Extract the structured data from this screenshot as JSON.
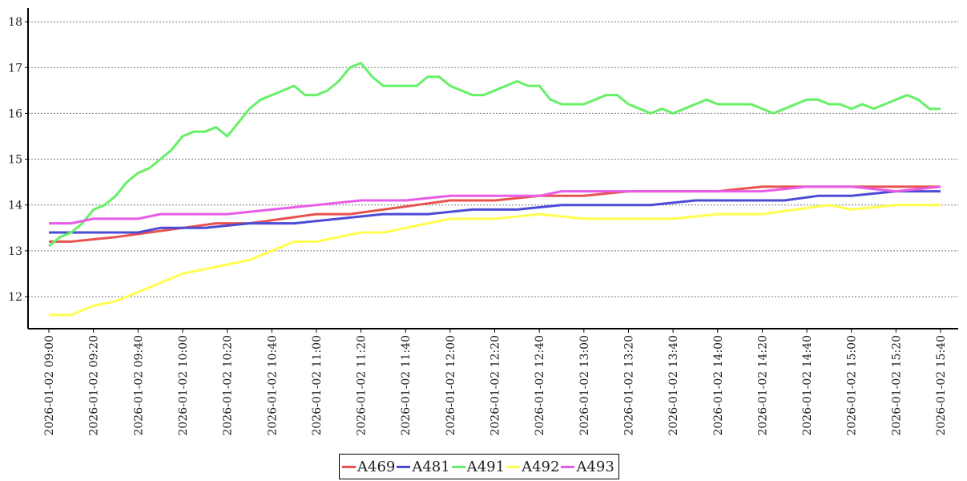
{
  "chart_data": {
    "type": "line",
    "title": "",
    "xlabel": "",
    "ylabel": "",
    "ylim": [
      11.3,
      18.3
    ],
    "yticks": [
      "12",
      "13",
      "14",
      "15",
      "16",
      "17",
      "18"
    ],
    "xticks": [
      "2026-01-02 09:00",
      "2026-01-02 09:20",
      "2026-01-02 09:40",
      "2026-01-02 10:00",
      "2026-01-02 10:20",
      "2026-01-02 10:40",
      "2026-01-02 11:00",
      "2026-01-02 11:20",
      "2026-01-02 11:40",
      "2026-01-02 12:00",
      "2026-01-02 12:20",
      "2026-01-02 12:40",
      "2026-01-02 13:00",
      "2026-01-02 13:20",
      "2026-01-02 13:40",
      "2026-01-02 14:00",
      "2026-01-02 14:20",
      "2026-01-02 14:40",
      "2026-01-02 15:00",
      "2026-01-02 15:20",
      "2026-01-02 15:40"
    ],
    "grid": "horizontal dotted",
    "legend_position": "bottom-center",
    "series": [
      {
        "name": "A469",
        "color": "#e8524f",
        "x": [
          "2026-01-02 09:00",
          "2026-01-02 09:10",
          "2026-01-02 09:30",
          "2026-01-02 09:45",
          "2026-01-02 10:00",
          "2026-01-02 10:15",
          "2026-01-02 10:30",
          "2026-01-02 10:45",
          "2026-01-02 11:00",
          "2026-01-02 11:15",
          "2026-01-02 11:30",
          "2026-01-02 11:45",
          "2026-01-02 12:00",
          "2026-01-02 12:20",
          "2026-01-02 12:40",
          "2026-01-02 13:00",
          "2026-01-02 13:20",
          "2026-01-02 13:40",
          "2026-01-02 14:00",
          "2026-01-02 14:20",
          "2026-01-02 14:40",
          "2026-01-02 15:00",
          "2026-01-02 15:20",
          "2026-01-02 15:40"
        ],
        "values": [
          13.2,
          13.2,
          13.3,
          13.4,
          13.5,
          13.6,
          13.6,
          13.7,
          13.8,
          13.8,
          13.9,
          14.0,
          14.1,
          14.1,
          14.2,
          14.2,
          14.3,
          14.3,
          14.3,
          14.4,
          14.4,
          14.4,
          14.4,
          14.4
        ]
      },
      {
        "name": "A481",
        "color": "#4b4bd6",
        "x": [
          "2026-01-02 09:00",
          "2026-01-02 09:20",
          "2026-01-02 09:40",
          "2026-01-02 09:50",
          "2026-01-02 10:10",
          "2026-01-02 10:30",
          "2026-01-02 10:50",
          "2026-01-02 11:10",
          "2026-01-02 11:30",
          "2026-01-02 11:50",
          "2026-01-02 12:10",
          "2026-01-02 12:30",
          "2026-01-02 12:50",
          "2026-01-02 13:10",
          "2026-01-02 13:30",
          "2026-01-02 13:50",
          "2026-01-02 14:10",
          "2026-01-02 14:30",
          "2026-01-02 14:45",
          "2026-01-02 15:00",
          "2026-01-02 15:20",
          "2026-01-02 15:40"
        ],
        "values": [
          13.4,
          13.4,
          13.4,
          13.5,
          13.5,
          13.6,
          13.6,
          13.7,
          13.8,
          13.8,
          13.9,
          13.9,
          14.0,
          14.0,
          14.0,
          14.1,
          14.1,
          14.1,
          14.2,
          14.2,
          14.3,
          14.3
        ]
      },
      {
        "name": "A491",
        "color": "#66f066",
        "x": [
          "2026-01-02 09:00",
          "2026-01-02 09:05",
          "2026-01-02 09:10",
          "2026-01-02 09:15",
          "2026-01-02 09:20",
          "2026-01-02 09:25",
          "2026-01-02 09:30",
          "2026-01-02 09:35",
          "2026-01-02 09:40",
          "2026-01-02 09:45",
          "2026-01-02 09:50",
          "2026-01-02 09:55",
          "2026-01-02 10:00",
          "2026-01-02 10:05",
          "2026-01-02 10:10",
          "2026-01-02 10:15",
          "2026-01-02 10:20",
          "2026-01-02 10:25",
          "2026-01-02 10:30",
          "2026-01-02 10:35",
          "2026-01-02 10:40",
          "2026-01-02 10:45",
          "2026-01-02 10:50",
          "2026-01-02 10:55",
          "2026-01-02 11:00",
          "2026-01-02 11:05",
          "2026-01-02 11:10",
          "2026-01-02 11:15",
          "2026-01-02 11:20",
          "2026-01-02 11:25",
          "2026-01-02 11:30",
          "2026-01-02 11:35",
          "2026-01-02 11:40",
          "2026-01-02 11:45",
          "2026-01-02 11:50",
          "2026-01-02 11:55",
          "2026-01-02 12:00",
          "2026-01-02 12:05",
          "2026-01-02 12:10",
          "2026-01-02 12:15",
          "2026-01-02 12:20",
          "2026-01-02 12:25",
          "2026-01-02 12:30",
          "2026-01-02 12:35",
          "2026-01-02 12:40",
          "2026-01-02 12:45",
          "2026-01-02 12:50",
          "2026-01-02 12:55",
          "2026-01-02 13:00",
          "2026-01-02 13:05",
          "2026-01-02 13:10",
          "2026-01-02 13:15",
          "2026-01-02 13:20",
          "2026-01-02 13:25",
          "2026-01-02 13:30",
          "2026-01-02 13:35",
          "2026-01-02 13:40",
          "2026-01-02 13:45",
          "2026-01-02 13:50",
          "2026-01-02 13:55",
          "2026-01-02 14:00",
          "2026-01-02 14:05",
          "2026-01-02 14:10",
          "2026-01-02 14:15",
          "2026-01-02 14:20",
          "2026-01-02 14:25",
          "2026-01-02 14:30",
          "2026-01-02 14:35",
          "2026-01-02 14:40",
          "2026-01-02 14:45",
          "2026-01-02 14:50",
          "2026-01-02 14:55",
          "2026-01-02 15:00",
          "2026-01-02 15:05",
          "2026-01-02 15:10",
          "2026-01-02 15:15",
          "2026-01-02 15:20",
          "2026-01-02 15:25",
          "2026-01-02 15:30",
          "2026-01-02 15:35",
          "2026-01-02 15:40"
        ],
        "values": [
          13.1,
          13.3,
          13.4,
          13.6,
          13.9,
          14.0,
          14.2,
          14.5,
          14.7,
          14.8,
          15.0,
          15.2,
          15.5,
          15.6,
          15.6,
          15.7,
          15.5,
          15.8,
          16.1,
          16.3,
          16.4,
          16.5,
          16.6,
          16.4,
          16.4,
          16.5,
          16.7,
          17.0,
          17.1,
          16.8,
          16.6,
          16.6,
          16.6,
          16.6,
          16.8,
          16.8,
          16.6,
          16.5,
          16.4,
          16.4,
          16.5,
          16.6,
          16.7,
          16.6,
          16.6,
          16.3,
          16.2,
          16.2,
          16.2,
          16.3,
          16.4,
          16.4,
          16.2,
          16.1,
          16.0,
          16.1,
          16.0,
          16.1,
          16.2,
          16.3,
          16.2,
          16.2,
          16.2,
          16.2,
          16.1,
          16.0,
          16.1,
          16.2,
          16.3,
          16.3,
          16.2,
          16.2,
          16.1,
          16.2,
          16.1,
          16.2,
          16.3,
          16.4,
          16.3,
          16.1,
          16.1
        ]
      },
      {
        "name": "A492",
        "color": "#ffff4d",
        "x": [
          "2026-01-02 09:00",
          "2026-01-02 09:10",
          "2026-01-02 09:20",
          "2026-01-02 09:30",
          "2026-01-02 09:40",
          "2026-01-02 09:50",
          "2026-01-02 10:00",
          "2026-01-02 10:10",
          "2026-01-02 10:20",
          "2026-01-02 10:30",
          "2026-01-02 10:40",
          "2026-01-02 10:50",
          "2026-01-02 11:00",
          "2026-01-02 11:10",
          "2026-01-02 11:20",
          "2026-01-02 11:30",
          "2026-01-02 11:40",
          "2026-01-02 11:50",
          "2026-01-02 12:00",
          "2026-01-02 12:20",
          "2026-01-02 12:40",
          "2026-01-02 13:00",
          "2026-01-02 13:20",
          "2026-01-02 13:40",
          "2026-01-02 14:00",
          "2026-01-02 14:20",
          "2026-01-02 14:35",
          "2026-01-02 14:50",
          "2026-01-02 15:00",
          "2026-01-02 15:20",
          "2026-01-02 15:40"
        ],
        "values": [
          11.6,
          11.6,
          11.8,
          11.9,
          12.1,
          12.3,
          12.5,
          12.6,
          12.7,
          12.8,
          13.0,
          13.2,
          13.2,
          13.3,
          13.4,
          13.4,
          13.5,
          13.6,
          13.7,
          13.7,
          13.8,
          13.7,
          13.7,
          13.7,
          13.8,
          13.8,
          13.9,
          14.0,
          13.9,
          14.0,
          14.0
        ]
      },
      {
        "name": "A493",
        "color": "#e85ce8",
        "x": [
          "2026-01-02 09:00",
          "2026-01-02 09:10",
          "2026-01-02 09:20",
          "2026-01-02 09:40",
          "2026-01-02 09:50",
          "2026-01-02 10:10",
          "2026-01-02 10:20",
          "2026-01-02 10:40",
          "2026-01-02 11:00",
          "2026-01-02 11:20",
          "2026-01-02 11:40",
          "2026-01-02 12:00",
          "2026-01-02 12:20",
          "2026-01-02 12:40",
          "2026-01-02 12:50",
          "2026-01-02 13:00",
          "2026-01-02 13:20",
          "2026-01-02 13:40",
          "2026-01-02 14:00",
          "2026-01-02 14:20",
          "2026-01-02 14:40",
          "2026-01-02 15:00",
          "2026-01-02 15:20",
          "2026-01-02 15:40"
        ],
        "values": [
          13.6,
          13.6,
          13.7,
          13.7,
          13.8,
          13.8,
          13.8,
          13.9,
          14.0,
          14.1,
          14.1,
          14.2,
          14.2,
          14.2,
          14.3,
          14.3,
          14.3,
          14.3,
          14.3,
          14.3,
          14.4,
          14.4,
          14.3,
          14.4
        ]
      }
    ]
  }
}
